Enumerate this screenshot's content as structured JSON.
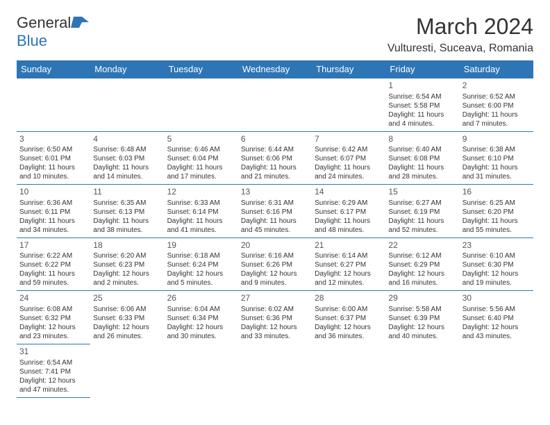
{
  "logo": {
    "primary": "General",
    "secondary": "Blue"
  },
  "title": "March 2024",
  "location": "Vulturesti, Suceava, Romania",
  "colors": {
    "header_bg": "#2e75b6",
    "header_fg": "#ffffff",
    "border": "#2e75b6",
    "text": "#333333"
  },
  "day_headers": [
    "Sunday",
    "Monday",
    "Tuesday",
    "Wednesday",
    "Thursday",
    "Friday",
    "Saturday"
  ],
  "weeks": [
    [
      null,
      null,
      null,
      null,
      null,
      {
        "n": "1",
        "sr": "Sunrise: 6:54 AM",
        "ss": "Sunset: 5:58 PM",
        "dl": "Daylight: 11 hours and 4 minutes."
      },
      {
        "n": "2",
        "sr": "Sunrise: 6:52 AM",
        "ss": "Sunset: 6:00 PM",
        "dl": "Daylight: 11 hours and 7 minutes."
      }
    ],
    [
      {
        "n": "3",
        "sr": "Sunrise: 6:50 AM",
        "ss": "Sunset: 6:01 PM",
        "dl": "Daylight: 11 hours and 10 minutes."
      },
      {
        "n": "4",
        "sr": "Sunrise: 6:48 AM",
        "ss": "Sunset: 6:03 PM",
        "dl": "Daylight: 11 hours and 14 minutes."
      },
      {
        "n": "5",
        "sr": "Sunrise: 6:46 AM",
        "ss": "Sunset: 6:04 PM",
        "dl": "Daylight: 11 hours and 17 minutes."
      },
      {
        "n": "6",
        "sr": "Sunrise: 6:44 AM",
        "ss": "Sunset: 6:06 PM",
        "dl": "Daylight: 11 hours and 21 minutes."
      },
      {
        "n": "7",
        "sr": "Sunrise: 6:42 AM",
        "ss": "Sunset: 6:07 PM",
        "dl": "Daylight: 11 hours and 24 minutes."
      },
      {
        "n": "8",
        "sr": "Sunrise: 6:40 AM",
        "ss": "Sunset: 6:08 PM",
        "dl": "Daylight: 11 hours and 28 minutes."
      },
      {
        "n": "9",
        "sr": "Sunrise: 6:38 AM",
        "ss": "Sunset: 6:10 PM",
        "dl": "Daylight: 11 hours and 31 minutes."
      }
    ],
    [
      {
        "n": "10",
        "sr": "Sunrise: 6:36 AM",
        "ss": "Sunset: 6:11 PM",
        "dl": "Daylight: 11 hours and 34 minutes."
      },
      {
        "n": "11",
        "sr": "Sunrise: 6:35 AM",
        "ss": "Sunset: 6:13 PM",
        "dl": "Daylight: 11 hours and 38 minutes."
      },
      {
        "n": "12",
        "sr": "Sunrise: 6:33 AM",
        "ss": "Sunset: 6:14 PM",
        "dl": "Daylight: 11 hours and 41 minutes."
      },
      {
        "n": "13",
        "sr": "Sunrise: 6:31 AM",
        "ss": "Sunset: 6:16 PM",
        "dl": "Daylight: 11 hours and 45 minutes."
      },
      {
        "n": "14",
        "sr": "Sunrise: 6:29 AM",
        "ss": "Sunset: 6:17 PM",
        "dl": "Daylight: 11 hours and 48 minutes."
      },
      {
        "n": "15",
        "sr": "Sunrise: 6:27 AM",
        "ss": "Sunset: 6:19 PM",
        "dl": "Daylight: 11 hours and 52 minutes."
      },
      {
        "n": "16",
        "sr": "Sunrise: 6:25 AM",
        "ss": "Sunset: 6:20 PM",
        "dl": "Daylight: 11 hours and 55 minutes."
      }
    ],
    [
      {
        "n": "17",
        "sr": "Sunrise: 6:22 AM",
        "ss": "Sunset: 6:22 PM",
        "dl": "Daylight: 11 hours and 59 minutes."
      },
      {
        "n": "18",
        "sr": "Sunrise: 6:20 AM",
        "ss": "Sunset: 6:23 PM",
        "dl": "Daylight: 12 hours and 2 minutes."
      },
      {
        "n": "19",
        "sr": "Sunrise: 6:18 AM",
        "ss": "Sunset: 6:24 PM",
        "dl": "Daylight: 12 hours and 5 minutes."
      },
      {
        "n": "20",
        "sr": "Sunrise: 6:16 AM",
        "ss": "Sunset: 6:26 PM",
        "dl": "Daylight: 12 hours and 9 minutes."
      },
      {
        "n": "21",
        "sr": "Sunrise: 6:14 AM",
        "ss": "Sunset: 6:27 PM",
        "dl": "Daylight: 12 hours and 12 minutes."
      },
      {
        "n": "22",
        "sr": "Sunrise: 6:12 AM",
        "ss": "Sunset: 6:29 PM",
        "dl": "Daylight: 12 hours and 16 minutes."
      },
      {
        "n": "23",
        "sr": "Sunrise: 6:10 AM",
        "ss": "Sunset: 6:30 PM",
        "dl": "Daylight: 12 hours and 19 minutes."
      }
    ],
    [
      {
        "n": "24",
        "sr": "Sunrise: 6:08 AM",
        "ss": "Sunset: 6:32 PM",
        "dl": "Daylight: 12 hours and 23 minutes."
      },
      {
        "n": "25",
        "sr": "Sunrise: 6:06 AM",
        "ss": "Sunset: 6:33 PM",
        "dl": "Daylight: 12 hours and 26 minutes."
      },
      {
        "n": "26",
        "sr": "Sunrise: 6:04 AM",
        "ss": "Sunset: 6:34 PM",
        "dl": "Daylight: 12 hours and 30 minutes."
      },
      {
        "n": "27",
        "sr": "Sunrise: 6:02 AM",
        "ss": "Sunset: 6:36 PM",
        "dl": "Daylight: 12 hours and 33 minutes."
      },
      {
        "n": "28",
        "sr": "Sunrise: 6:00 AM",
        "ss": "Sunset: 6:37 PM",
        "dl": "Daylight: 12 hours and 36 minutes."
      },
      {
        "n": "29",
        "sr": "Sunrise: 5:58 AM",
        "ss": "Sunset: 6:39 PM",
        "dl": "Daylight: 12 hours and 40 minutes."
      },
      {
        "n": "30",
        "sr": "Sunrise: 5:56 AM",
        "ss": "Sunset: 6:40 PM",
        "dl": "Daylight: 12 hours and 43 minutes."
      }
    ],
    [
      {
        "n": "31",
        "sr": "Sunrise: 6:54 AM",
        "ss": "Sunset: 7:41 PM",
        "dl": "Daylight: 12 hours and 47 minutes."
      },
      null,
      null,
      null,
      null,
      null,
      null
    ]
  ]
}
